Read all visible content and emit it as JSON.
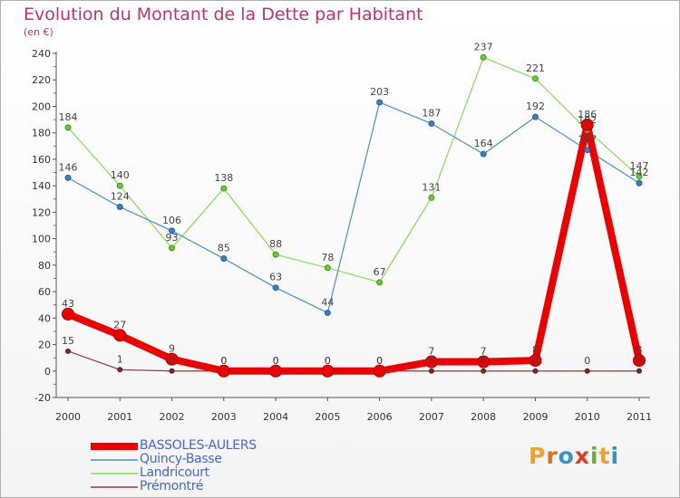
{
  "header": {
    "title": "Evolution du Montant de la Dette par Habitant",
    "subtitle": "(en €)"
  },
  "logo": {
    "text": "Proxiti",
    "colors": [
      "#f0a030",
      "#3a8fd0",
      "#e04020",
      "#6ab040"
    ]
  },
  "chart_data": {
    "type": "line",
    "title": "Evolution du Montant de la Dette par Habitant",
    "ylabel": "(en €)",
    "xlabel": "",
    "ylim": [
      -20,
      240
    ],
    "yticks": [
      -20,
      0,
      20,
      40,
      60,
      80,
      100,
      120,
      140,
      160,
      180,
      200,
      220,
      240
    ],
    "categories": [
      "2000",
      "2001",
      "2002",
      "2003",
      "2004",
      "2005",
      "2006",
      "2007",
      "2008",
      "2009",
      "2010",
      "2011"
    ],
    "grid": false,
    "legend_position": "bottom-left",
    "series": [
      {
        "name": "BASSOLES-AULERS",
        "color": "#ee0000",
        "values": [
          43,
          27,
          9,
          0,
          0,
          0,
          0,
          7,
          7,
          8,
          186,
          8
        ],
        "labels": [
          "43",
          "27",
          "9",
          "0",
          "0",
          "0",
          "0",
          "7",
          "7",
          "8",
          "186",
          "8"
        ]
      },
      {
        "name": "Quincy-Basse",
        "color": "#4a90c8",
        "values": [
          146,
          124,
          106,
          85,
          63,
          44,
          203,
          187,
          164,
          192,
          167,
          142
        ],
        "labels": [
          "146",
          "124",
          "106",
          "85",
          "63",
          "44",
          "203",
          "187",
          "164",
          "192",
          "167",
          "142"
        ]
      },
      {
        "name": "Landricourt",
        "color": "#88dd55",
        "values": [
          184,
          140,
          93,
          138,
          88,
          78,
          67,
          131,
          237,
          221,
          182,
          147
        ],
        "labels": [
          "184",
          "140",
          "93",
          "138",
          "88",
          "78",
          "67",
          "131",
          "237",
          "221",
          "182",
          "147"
        ]
      },
      {
        "name": "Prémontré",
        "color": "#8b3a3a",
        "values": [
          15,
          1,
          0,
          0,
          0,
          0,
          0,
          0,
          0,
          0,
          0,
          0
        ],
        "labels": [
          "15",
          "1",
          "0",
          "0",
          "0",
          "0",
          "0",
          "0",
          "0",
          "0",
          "0",
          "0"
        ]
      }
    ]
  }
}
